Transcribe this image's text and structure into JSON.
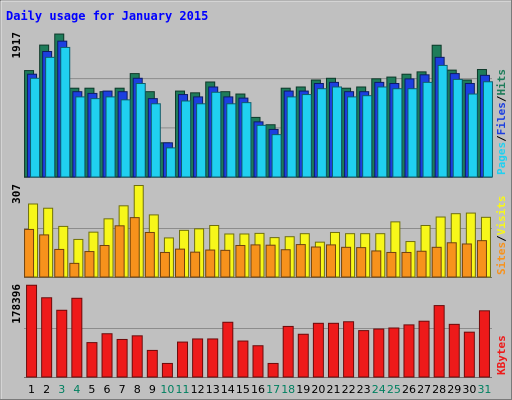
{
  "chart_data": {
    "type": "bar",
    "title": "Daily usage for January 2015",
    "categories": [
      "1",
      "2",
      "3",
      "4",
      "5",
      "6",
      "7",
      "8",
      "9",
      "10",
      "11",
      "12",
      "13",
      "14",
      "15",
      "16",
      "17",
      "18",
      "19",
      "20",
      "21",
      "22",
      "23",
      "24",
      "25",
      "26",
      "27",
      "28",
      "29",
      "30",
      "31"
    ],
    "weekend_days": [
      "3",
      "4",
      "10",
      "11",
      "17",
      "18",
      "24",
      "25",
      "31"
    ],
    "panels": [
      {
        "id": "top",
        "ymax_label": "1917",
        "ylim": [
          0,
          1917
        ],
        "right_label_parts": [
          "Pages",
          "/",
          "Files",
          "/",
          "Hits"
        ],
        "series": [
          {
            "name": "Hits",
            "color": "#1e7c5a",
            "values": [
              1407,
              1744,
              1890,
              1174,
              1174,
              1128,
              1174,
              1367,
              1128,
              452,
              1136,
              1113,
              1256,
              1128,
              1097,
              788,
              691,
              1174,
              1190,
              1282,
              1305,
              1174,
              1190,
              1298,
              1321,
              1359,
              1390,
              1742,
              1413,
              1282,
              1421
            ]
          },
          {
            "name": "Files",
            "color": "#1c3fe0",
            "values": [
              1359,
              1659,
              1796,
              1128,
              1105,
              1136,
              1128,
              1305,
              1036,
              452,
              1090,
              1059,
              1190,
              1059,
              1043,
              729,
              629,
              1136,
              1136,
              1236,
              1251,
              1128,
              1128,
              1251,
              1236,
              1297,
              1351,
              1582,
              1367,
              1236,
              1344
            ]
          },
          {
            "name": "Pages",
            "color": "#20d0f0",
            "values": [
              1305,
              1582,
              1713,
              1059,
              1036,
              1059,
              1020,
              1236,
              968,
              385,
              1005,
              968,
              1120,
              968,
              983,
              683,
              560,
              1059,
              1090,
              1167,
              1190,
              1059,
              1075,
              1190,
              1167,
              1167,
              1251,
              1475,
              1290,
              1097,
              1259
            ]
          }
        ]
      },
      {
        "id": "mid",
        "ymax_label": "307",
        "ylim": [
          0,
          307
        ],
        "right_label_parts": [
          "Sites",
          "/",
          "Visits"
        ],
        "series": [
          {
            "name": "Visits",
            "color": "#f7f71a",
            "values": [
              241,
              227,
              167,
              124,
              148,
              192,
              235,
              302,
              205,
              129,
              154,
              159,
              170,
              142,
              142,
              144,
              130,
              133,
              143,
              115,
              147,
              143,
              143,
              143,
              182,
              117,
              170,
              198,
              209,
              211,
              197
            ]
          },
          {
            "name": "Sites",
            "color": "#f7921c",
            "values": [
              157,
              139,
              91,
              45,
              84,
              104,
              169,
              196,
              147,
              81,
              92,
              82,
              89,
              88,
              104,
              106,
              105,
              90,
              107,
              99,
              106,
              98,
              97,
              86,
              81,
              81,
              85,
              98,
              113,
              109,
              120
            ]
          }
        ]
      },
      {
        "id": "bot",
        "ymax_label": "178396",
        "ylim": [
          0,
          178396
        ],
        "right_label_parts": [
          "KBytes"
        ],
        "series": [
          {
            "name": "KBytes",
            "color": "#ee1a1a",
            "values": [
              176000,
              152000,
              128000,
              151000,
              66000,
              83000,
              72000,
              79000,
              51000,
              26000,
              67000,
              73000,
              73000,
              105000,
              69000,
              60000,
              26000,
              97000,
              82000,
              103000,
              103000,
              106000,
              89000,
              92000,
              94000,
              100000,
              107000,
              137000,
              101000,
              86000,
              127000
            ]
          }
        ]
      }
    ],
    "colors": {
      "background": "#c0c0c0",
      "title": "#0000ff",
      "day_label": "#000000",
      "weekend_label": "#008060",
      "separator": "#707070",
      "right_label_separator": "#000000"
    }
  }
}
